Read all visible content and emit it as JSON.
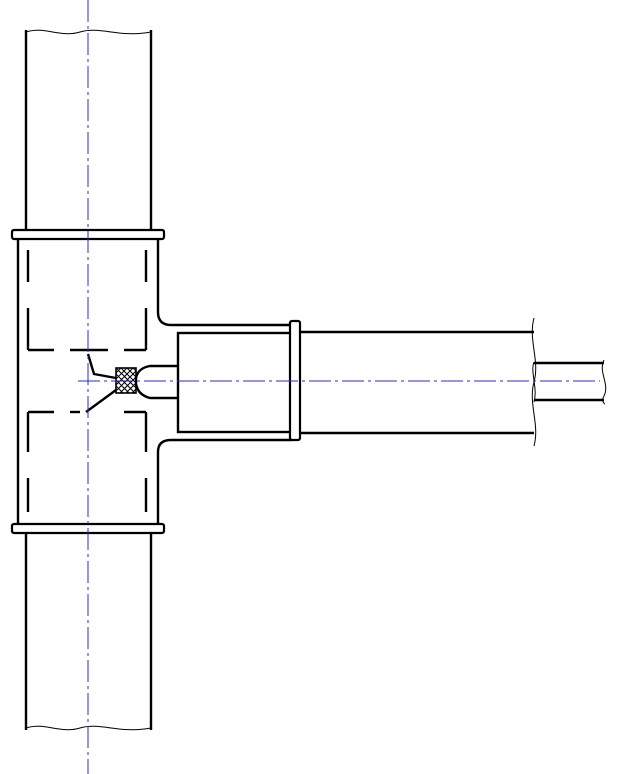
{
  "drawing": {
    "line_color": "#000000",
    "centerline_color": "#2b2bd0",
    "background": "#ffffff",
    "components": [
      "vertical-pipe",
      "tee-fitting",
      "branch-pipe",
      "branch-sleeve",
      "inner-tube",
      "packing-seal"
    ]
  }
}
